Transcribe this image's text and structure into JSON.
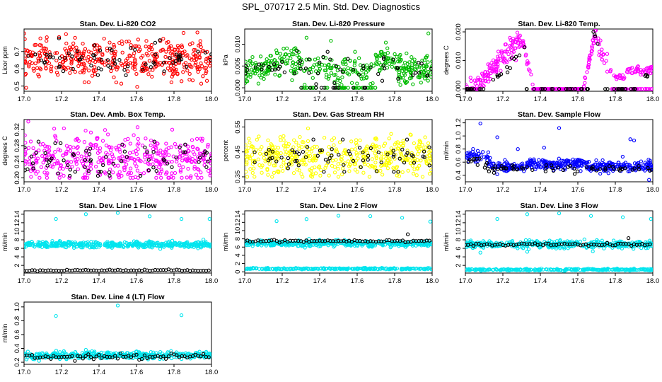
{
  "title": "SPL_070717  2.5 Min. Std. Dev. Diagnostics",
  "chart_data": [
    {
      "type": "scatter",
      "title": "Stan. Dev. Li-820 CO2",
      "ylabel": "Licor ppm",
      "xlim": [
        17.0,
        18.0
      ],
      "ylim": [
        0.47,
        0.83
      ],
      "xticks": [
        "17.0",
        "17.2",
        "17.4",
        "17.6",
        "17.8",
        "18.0"
      ],
      "yticks": [
        "0.5",
        "0.6",
        "0.7"
      ],
      "ytick_values": [
        0.5,
        0.6,
        0.7
      ],
      "series": [
        {
          "color": "#ff0000",
          "values": "dense scatter 0.50–0.80 around 0.65"
        },
        {
          "color": "#000000",
          "values": "sparse scatter 0.55–0.78 around 0.66"
        }
      ]
    },
    {
      "type": "scatter",
      "title": "Stan. Dev. Li-820 Pressure",
      "ylabel": "kPa",
      "xlim": [
        17.0,
        18.0
      ],
      "ylim": [
        -0.0008,
        0.0135
      ],
      "xticks": [
        "17.0",
        "17.2",
        "17.4",
        "17.6",
        "17.8",
        "18.0"
      ],
      "yticks": [
        "0.000",
        "0.005",
        "0.010"
      ],
      "ytick_values": [
        0,
        0.005,
        0.01
      ],
      "series": [
        {
          "color": "#00bb00",
          "values": "scatter 0.000–0.009, peaks near 17.2 and 17.75"
        },
        {
          "color": "#000000",
          "values": "scatter 0.000–0.008"
        }
      ]
    },
    {
      "type": "scatter",
      "title": "Stan. Dev. Li-820 Temp.",
      "ylabel": "degrees C",
      "xlim": [
        17.0,
        18.0
      ],
      "ylim": [
        -0.0008,
        0.021
      ],
      "xticks": [
        "17.0",
        "17.2",
        "17.4",
        "17.6",
        "17.8",
        "18.0"
      ],
      "yticks": [
        "0.000",
        "0.010",
        "0.020"
      ],
      "ytick_values": [
        0,
        0.01,
        0.02
      ],
      "series": [
        {
          "color": "#ff00ff",
          "values": "peaks ~0.019 near 17.25 and 17.7, zeros elsewhere"
        },
        {
          "color": "#000000",
          "values": "follows magenta peaks"
        }
      ]
    },
    {
      "type": "scatter",
      "title": "Stan. Dev. Amb. Box Temp.",
      "ylabel": "degrees C",
      "xlim": [
        17.0,
        18.0
      ],
      "ylim": [
        0.19,
        0.345
      ],
      "xticks": [
        "17.0",
        "17.2",
        "17.4",
        "17.6",
        "17.8",
        "18.0"
      ],
      "yticks": [
        "0.20",
        "0.24",
        "0.28",
        "0.32"
      ],
      "ytick_values": [
        0.2,
        0.24,
        0.28,
        0.32
      ],
      "series": [
        {
          "color": "#ff00ff",
          "values": "scatter 0.20–0.34 around 0.25"
        },
        {
          "color": "#000000",
          "values": "scatter 0.21–0.28"
        }
      ]
    },
    {
      "type": "scatter",
      "title": "Stan. Dev. Gas Stream RH",
      "ylabel": "percent",
      "xlim": [
        17.0,
        18.0
      ],
      "ylim": [
        0.33,
        0.58
      ],
      "xticks": [
        "17.0",
        "17.2",
        "17.4",
        "17.6",
        "17.8",
        "18.0"
      ],
      "yticks": [
        "0.35",
        "0.45",
        "0.55"
      ],
      "ytick_values": [
        0.35,
        0.45,
        0.55
      ],
      "series": [
        {
          "color": "#ffff00",
          "values": "scatter 0.35–0.57 around 0.43"
        },
        {
          "color": "#000000",
          "values": "scatter 0.37–0.50"
        }
      ]
    },
    {
      "type": "scatter",
      "title": "Stan. Dev. Sample Flow",
      "ylabel": "ml/min",
      "xlim": [
        17.0,
        18.0
      ],
      "ylim": [
        0.3,
        1.25
      ],
      "xticks": [
        "17.0",
        "17.2",
        "17.4",
        "17.6",
        "17.8",
        "18.0"
      ],
      "yticks": [
        "0.4",
        "0.6",
        "0.8",
        "1.0",
        "1.2"
      ],
      "ytick_values": [
        0.4,
        0.6,
        0.8,
        1.0,
        1.2
      ],
      "series": [
        {
          "color": "#0000ff",
          "values": "0.7 near 17.0–17.1, then ~0.5–0.6 with outliers up to 1.2"
        },
        {
          "color": "#000000",
          "values": "~0.45–0.55"
        }
      ]
    },
    {
      "type": "scatter",
      "title": "Stan. Dev. Line 1 Flow",
      "ylabel": "ml/min",
      "xlim": [
        17.0,
        18.0
      ],
      "ylim": [
        0.2,
        14.8
      ],
      "xticks": [
        "17.0",
        "17.2",
        "17.4",
        "17.6",
        "17.8",
        "18.0"
      ],
      "yticks": [
        "2",
        "4",
        "6",
        "8",
        "10",
        "12",
        "14"
      ],
      "ytick_values": [
        2,
        4,
        6,
        8,
        10,
        12,
        14
      ],
      "series": [
        {
          "color": "#00e5ee",
          "values": "band ~6.5–7.5, outliers ~13–14"
        },
        {
          "color": "#000000",
          "values": "~0.7–1.0 flat"
        }
      ]
    },
    {
      "type": "scatter",
      "title": "Stan. Dev. Line 2 Flow",
      "ylabel": "ml/min",
      "xlim": [
        17.0,
        18.0
      ],
      "ylim": [
        -0.3,
        14.8
      ],
      "xticks": [
        "17.0",
        "17.2",
        "17.4",
        "17.6",
        "17.8",
        "18.0"
      ],
      "yticks": [
        "0",
        "2",
        "4",
        "6",
        "8",
        "10",
        "12",
        "14"
      ],
      "ytick_values": [
        0,
        2,
        4,
        6,
        8,
        10,
        12,
        14
      ],
      "series": [
        {
          "color": "#00e5ee",
          "values": "band ~6.5–7.5 and band ~0.5–1.0, outliers ~12–14"
        },
        {
          "color": "#000000",
          "values": "~7.3–7.8"
        }
      ]
    },
    {
      "type": "scatter",
      "title": "Stan. Dev. Line 3 Flow",
      "ylabel": "ml/min",
      "xlim": [
        17.0,
        18.0
      ],
      "ylim": [
        0.2,
        14.8
      ],
      "xticks": [
        "17.0",
        "17.2",
        "17.4",
        "17.6",
        "17.8",
        "18.0"
      ],
      "yticks": [
        "2",
        "4",
        "6",
        "8",
        "10",
        "12",
        "14"
      ],
      "ytick_values": [
        2,
        4,
        6,
        8,
        10,
        12,
        14
      ],
      "series": [
        {
          "color": "#00e5ee",
          "values": "band ~6.5–7.5 and band ~0.8–1.2, outliers ~13–14"
        },
        {
          "color": "#000000",
          "values": "~6.7–7.2"
        }
      ]
    },
    {
      "type": "scatter",
      "title": "Stan. Dev. Line 4 (LT) Flow",
      "ylabel": "ml/min",
      "xlim": [
        17.0,
        18.0
      ],
      "ylim": [
        0.17,
        1.07
      ],
      "xticks": [
        "17.0",
        "17.2",
        "17.4",
        "17.6",
        "17.8",
        "18.0"
      ],
      "yticks": [
        "0.2",
        "0.4",
        "0.6",
        "0.8",
        "1.0"
      ],
      "ytick_values": [
        0.2,
        0.4,
        0.6,
        0.8,
        1.0
      ],
      "series": [
        {
          "color": "#00e5ee",
          "values": "band ~0.25–0.35, outliers ~0.85–1.02"
        },
        {
          "color": "#000000",
          "values": "~0.24–0.32"
        }
      ]
    }
  ]
}
